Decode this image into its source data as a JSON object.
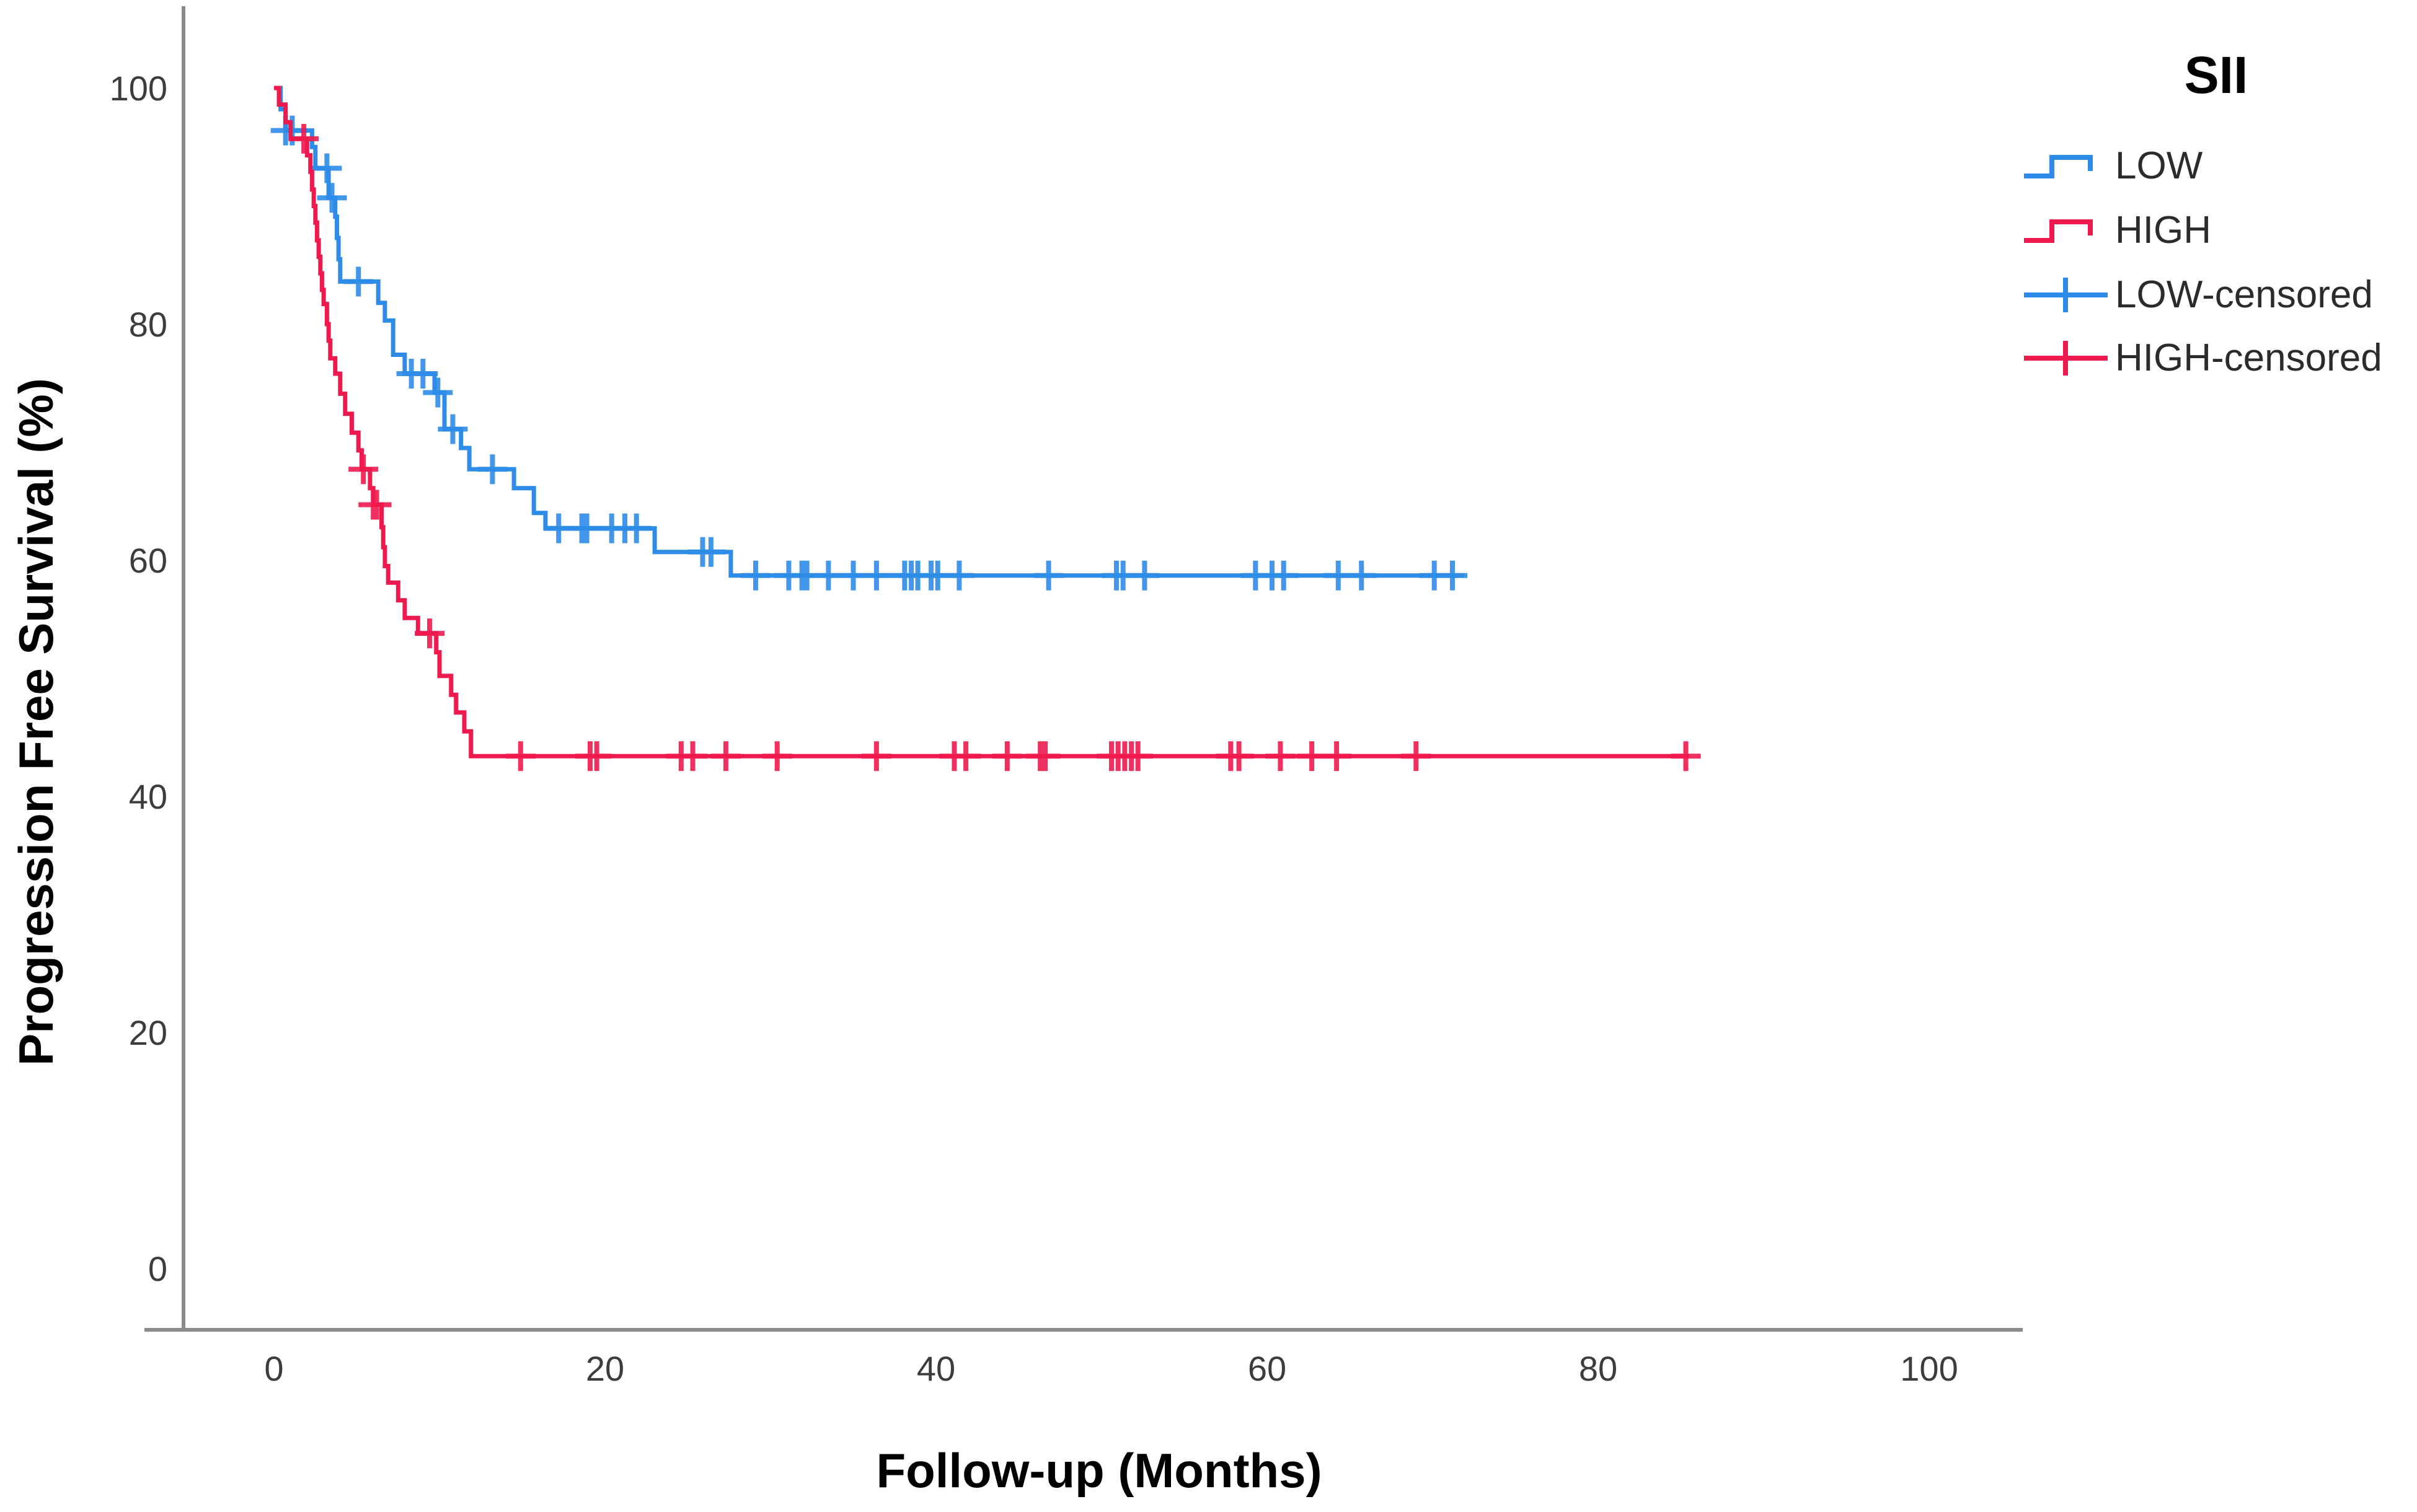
{
  "chart_data": {
    "type": "line",
    "subtype": "kaplan-meier-step",
    "title": "",
    "xlabel": "Follow-up (Months)",
    "ylabel": "Progression Free Survival (%)",
    "xlim": [
      0,
      105
    ],
    "ylim": [
      0,
      100
    ],
    "x_ticks": [
      0,
      20,
      40,
      60,
      80,
      100
    ],
    "y_ticks": [
      0,
      20,
      40,
      60,
      80,
      100
    ],
    "grid": "off",
    "legend": {
      "title": "SII",
      "position": "top-right",
      "entries": [
        {
          "label": "LOW",
          "color": "#2d8ce8",
          "symbol": "step"
        },
        {
          "label": "HIGH",
          "color": "#ee1a4e",
          "symbol": "step"
        },
        {
          "label": "LOW-censored",
          "color": "#2d8ce8",
          "symbol": "plus"
        },
        {
          "label": "HIGH-censored",
          "color": "#ee1a4e",
          "symbol": "plus"
        }
      ]
    },
    "series": [
      {
        "name": "LOW",
        "color": "#2d8ce8",
        "end_month": 71.9,
        "steps": [
          [
            0,
            100
          ],
          [
            0.4,
            98.2
          ],
          [
            0.7,
            96.4
          ],
          [
            2.3,
            95.0
          ],
          [
            2.5,
            93.2
          ],
          [
            3.3,
            90.7
          ],
          [
            3.7,
            89.1
          ],
          [
            3.8,
            87.3
          ],
          [
            3.9,
            85.5
          ],
          [
            4.0,
            83.6
          ],
          [
            6.3,
            81.8
          ],
          [
            6.7,
            80.3
          ],
          [
            7.2,
            77.4
          ],
          [
            7.9,
            75.8
          ],
          [
            9.7,
            74.2
          ],
          [
            10.3,
            71.1
          ],
          [
            11.3,
            69.5
          ],
          [
            11.8,
            67.7
          ],
          [
            14.5,
            66.1
          ],
          [
            15.7,
            64.0
          ],
          [
            16.4,
            62.7
          ],
          [
            23.0,
            60.7
          ],
          [
            27.6,
            58.7
          ]
        ],
        "censored": [
          [
            0.7,
            96.4
          ],
          [
            1.1,
            96.4
          ],
          [
            3.2,
            93.2
          ],
          [
            3.5,
            90.7
          ],
          [
            5.1,
            83.6
          ],
          [
            8.3,
            75.8
          ],
          [
            9.0,
            75.8
          ],
          [
            9.9,
            74.2
          ],
          [
            10.8,
            71.1
          ],
          [
            13.2,
            67.7
          ],
          [
            17.2,
            62.7
          ],
          [
            18.6,
            62.7
          ],
          [
            18.9,
            62.7
          ],
          [
            20.4,
            62.7
          ],
          [
            21.2,
            62.7
          ],
          [
            21.9,
            62.7
          ],
          [
            25.9,
            60.7
          ],
          [
            26.4,
            60.7
          ],
          [
            29.1,
            58.7
          ],
          [
            31.1,
            58.7
          ],
          [
            31.9,
            58.7
          ],
          [
            32.2,
            58.7
          ],
          [
            33.5,
            58.7
          ],
          [
            35.0,
            58.7
          ],
          [
            36.4,
            58.7
          ],
          [
            38.1,
            58.7
          ],
          [
            38.5,
            58.7
          ],
          [
            38.9,
            58.7
          ],
          [
            39.7,
            58.7
          ],
          [
            40.1,
            58.7
          ],
          [
            41.4,
            58.7
          ],
          [
            46.8,
            58.7
          ],
          [
            50.9,
            58.7
          ],
          [
            51.3,
            58.7
          ],
          [
            52.6,
            58.7
          ],
          [
            59.3,
            58.7
          ],
          [
            60.3,
            58.7
          ],
          [
            61.0,
            58.7
          ],
          [
            64.3,
            58.7
          ],
          [
            65.7,
            58.7
          ],
          [
            70.1,
            58.7
          ],
          [
            71.2,
            58.7
          ]
        ]
      },
      {
        "name": "HIGH",
        "color": "#ee1a4e",
        "end_month": 85.5,
        "steps": [
          [
            0,
            100
          ],
          [
            0.3,
            98.6
          ],
          [
            0.7,
            97.1
          ],
          [
            1.0,
            95.7
          ],
          [
            2.0,
            94.3
          ],
          [
            2.2,
            92.9
          ],
          [
            2.3,
            91.4
          ],
          [
            2.4,
            90.0
          ],
          [
            2.5,
            88.6
          ],
          [
            2.6,
            87.1
          ],
          [
            2.7,
            85.7
          ],
          [
            2.8,
            84.3
          ],
          [
            2.9,
            82.9
          ],
          [
            3.0,
            81.7
          ],
          [
            3.2,
            80.0
          ],
          [
            3.3,
            78.6
          ],
          [
            3.4,
            77.1
          ],
          [
            3.7,
            75.8
          ],
          [
            4.0,
            74.1
          ],
          [
            4.3,
            72.4
          ],
          [
            4.7,
            70.8
          ],
          [
            5.1,
            69.3
          ],
          [
            5.3,
            67.7
          ],
          [
            5.8,
            66.1
          ],
          [
            6.0,
            64.7
          ],
          [
            6.5,
            62.8
          ],
          [
            6.6,
            61.1
          ],
          [
            6.7,
            59.5
          ],
          [
            6.9,
            58.1
          ],
          [
            7.5,
            56.6
          ],
          [
            7.9,
            55.1
          ],
          [
            8.7,
            53.8
          ],
          [
            9.8,
            52.2
          ],
          [
            10.0,
            50.2
          ],
          [
            10.7,
            48.6
          ],
          [
            11.0,
            47.1
          ],
          [
            11.5,
            45.5
          ],
          [
            11.9,
            43.4
          ]
        ],
        "censored": [
          [
            1.8,
            95.7
          ],
          [
            5.4,
            67.7
          ],
          [
            6.0,
            64.7
          ],
          [
            6.2,
            64.7
          ],
          [
            9.4,
            53.8
          ],
          [
            14.9,
            43.4
          ],
          [
            19.1,
            43.4
          ],
          [
            19.5,
            43.4
          ],
          [
            24.6,
            43.4
          ],
          [
            25.3,
            43.4
          ],
          [
            27.3,
            43.4
          ],
          [
            30.4,
            43.4
          ],
          [
            36.4,
            43.4
          ],
          [
            41.1,
            43.4
          ],
          [
            41.8,
            43.4
          ],
          [
            44.3,
            43.4
          ],
          [
            46.3,
            43.4
          ],
          [
            46.6,
            43.4
          ],
          [
            50.6,
            43.4
          ],
          [
            51.0,
            43.4
          ],
          [
            51.4,
            43.4
          ],
          [
            51.8,
            43.4
          ],
          [
            52.2,
            43.4
          ],
          [
            57.8,
            43.4
          ],
          [
            58.3,
            43.4
          ],
          [
            60.8,
            43.4
          ],
          [
            62.7,
            43.4
          ],
          [
            64.2,
            43.4
          ],
          [
            69.0,
            43.4
          ],
          [
            85.3,
            43.4
          ]
        ]
      }
    ]
  }
}
